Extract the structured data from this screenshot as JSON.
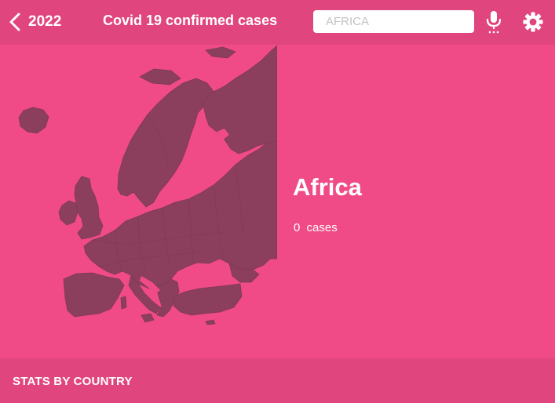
{
  "header": {
    "back_icon": "chevron-left-icon",
    "back_label": "2022",
    "title": "Covid 19 confirmed cases",
    "search": {
      "placeholder": "AFRICA",
      "value": ""
    },
    "mic_icon": "microphone-icon",
    "settings_icon": "gear-icon"
  },
  "main": {
    "map": "europe-map",
    "region_name": "Africa",
    "case_count": "0",
    "case_unit": "cases"
  },
  "footer": {
    "label": "STATS BY COUNTRY"
  },
  "colors": {
    "background": "#f04b86",
    "bar": "#e1457d",
    "land": "#8b3f5c",
    "text": "#ffffff"
  }
}
